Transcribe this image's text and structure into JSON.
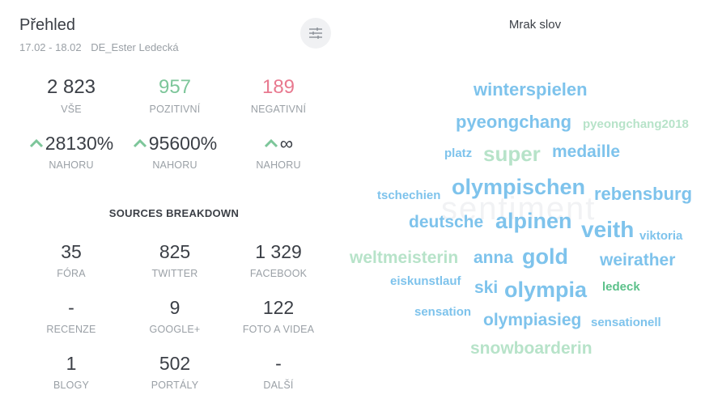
{
  "overview": {
    "title": "Přehled",
    "date_range": "17.02 - 18.02",
    "profile": "DE_Ester Ledecká",
    "totals": [
      {
        "value": "2 823",
        "label": "VŠE",
        "color": "#3b3f46"
      },
      {
        "value": "957",
        "label": "POZITIVNÍ",
        "color": "#7dc69a"
      },
      {
        "value": "189",
        "label": "NEGATIVNÍ",
        "color": "#e8798f"
      }
    ],
    "trends": [
      {
        "value": "28130%",
        "label": "NAHORU"
      },
      {
        "value": "95600%",
        "label": "NAHORU"
      },
      {
        "value": "∞",
        "label": "NAHORU"
      }
    ],
    "trend_color": "#7dc69a"
  },
  "sources": {
    "title": "SOURCES BREAKDOWN",
    "items": [
      {
        "value": "35",
        "label": "FÓRA"
      },
      {
        "value": "825",
        "label": "TWITTER"
      },
      {
        "value": "1 329",
        "label": "FACEBOOK"
      },
      {
        "value": "-",
        "label": "RECENZE"
      },
      {
        "value": "9",
        "label": "GOOGLE+"
      },
      {
        "value": "122",
        "label": "FOTO A VIDEA"
      },
      {
        "value": "1",
        "label": "BLOGY"
      },
      {
        "value": "502",
        "label": "PORTÁLY"
      },
      {
        "value": "-",
        "label": "DALŠÍ"
      }
    ]
  },
  "word_cloud": {
    "title": "Mrak slov",
    "background_label": "sentiment",
    "colors": {
      "blue": "#7ec3ec",
      "green": "#b7e3c9",
      "darkgreen": "#5cc18a"
    },
    "words": [
      "winterspielen",
      "pyeongchang",
      "pyeongchang2018",
      "platz",
      "super",
      "medaille",
      "tschechien",
      "olympischen",
      "rebensburg",
      "deutsche",
      "alpinen",
      "veith",
      "viktoria",
      "weltmeisterin",
      "anna",
      "gold",
      "weirather",
      "eiskunstlauf",
      "ski",
      "olympia",
      "ledeck",
      "sensation",
      "olympiasieg",
      "sensationell",
      "snowboarderin"
    ]
  }
}
